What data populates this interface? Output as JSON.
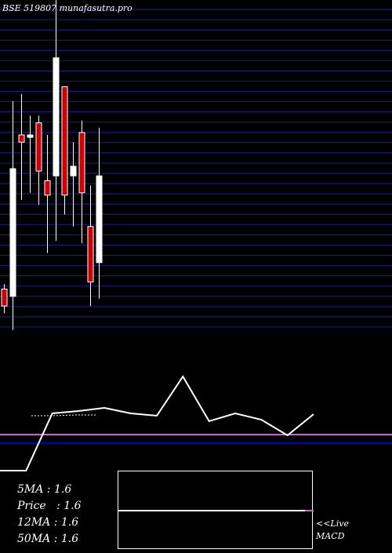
{
  "header": {
    "title": "BSE 519807 munafasutra.pro"
  },
  "chart_data": {
    "type": "candlestick",
    "candles": [
      {
        "open": 1.8,
        "high": 1.82,
        "low": 1.7,
        "close": 1.73,
        "color": "red"
      },
      {
        "open": 1.77,
        "high": 2.58,
        "low": 1.63,
        "close": 2.3,
        "color": "white"
      },
      {
        "open": 2.44,
        "high": 2.61,
        "low": 2.17,
        "close": 2.41,
        "color": "red"
      },
      {
        "open": 2.43,
        "high": 2.52,
        "low": 2.2,
        "close": 2.44,
        "color": "white"
      },
      {
        "open": 2.49,
        "high": 2.52,
        "low": 2.15,
        "close": 2.29,
        "color": "red"
      },
      {
        "open": 2.25,
        "high": 2.44,
        "low": 1.95,
        "close": 2.19,
        "color": "red"
      },
      {
        "open": 2.27,
        "high": 3.0,
        "low": 2.0,
        "close": 2.76,
        "color": "white"
      },
      {
        "open": 2.64,
        "high": 2.64,
        "low": 2.11,
        "close": 2.19,
        "color": "red"
      },
      {
        "open": 2.27,
        "high": 2.41,
        "low": 2.06,
        "close": 2.31,
        "color": "white"
      },
      {
        "open": 2.45,
        "high": 2.5,
        "low": 1.99,
        "close": 2.2,
        "color": "red"
      },
      {
        "open": 2.06,
        "high": 2.23,
        "low": 1.73,
        "close": 1.83,
        "color": "red"
      },
      {
        "open": 1.91,
        "high": 2.47,
        "low": 1.76,
        "close": 2.27,
        "color": "white"
      }
    ],
    "gridlines": 32,
    "indicator": {
      "price_line": [
        0.1,
        0.1,
        0.83,
        0.86,
        0.9,
        0.83,
        0.8,
        1.3,
        0.73,
        0.83,
        0.75,
        0.55,
        0.82
      ],
      "ma_line": [
        0.8,
        0.8,
        0.81,
        0.81
      ],
      "reference_levels": {
        "purple": 0.88,
        "blue": 0.77
      }
    }
  },
  "stats": {
    "ma5": "5MA : 1.6",
    "price": "Price   : 1.6",
    "ma12": "12MA : 1.6",
    "ma50": "50MA : 1.6"
  },
  "live": {
    "line1": "<<Live",
    "line2": "MACD"
  },
  "colors": {
    "grid": "#1a1a7a",
    "red": "#cc0000",
    "white": "#ffffff",
    "purple": "#cc66cc",
    "blue": "#0000cc"
  }
}
